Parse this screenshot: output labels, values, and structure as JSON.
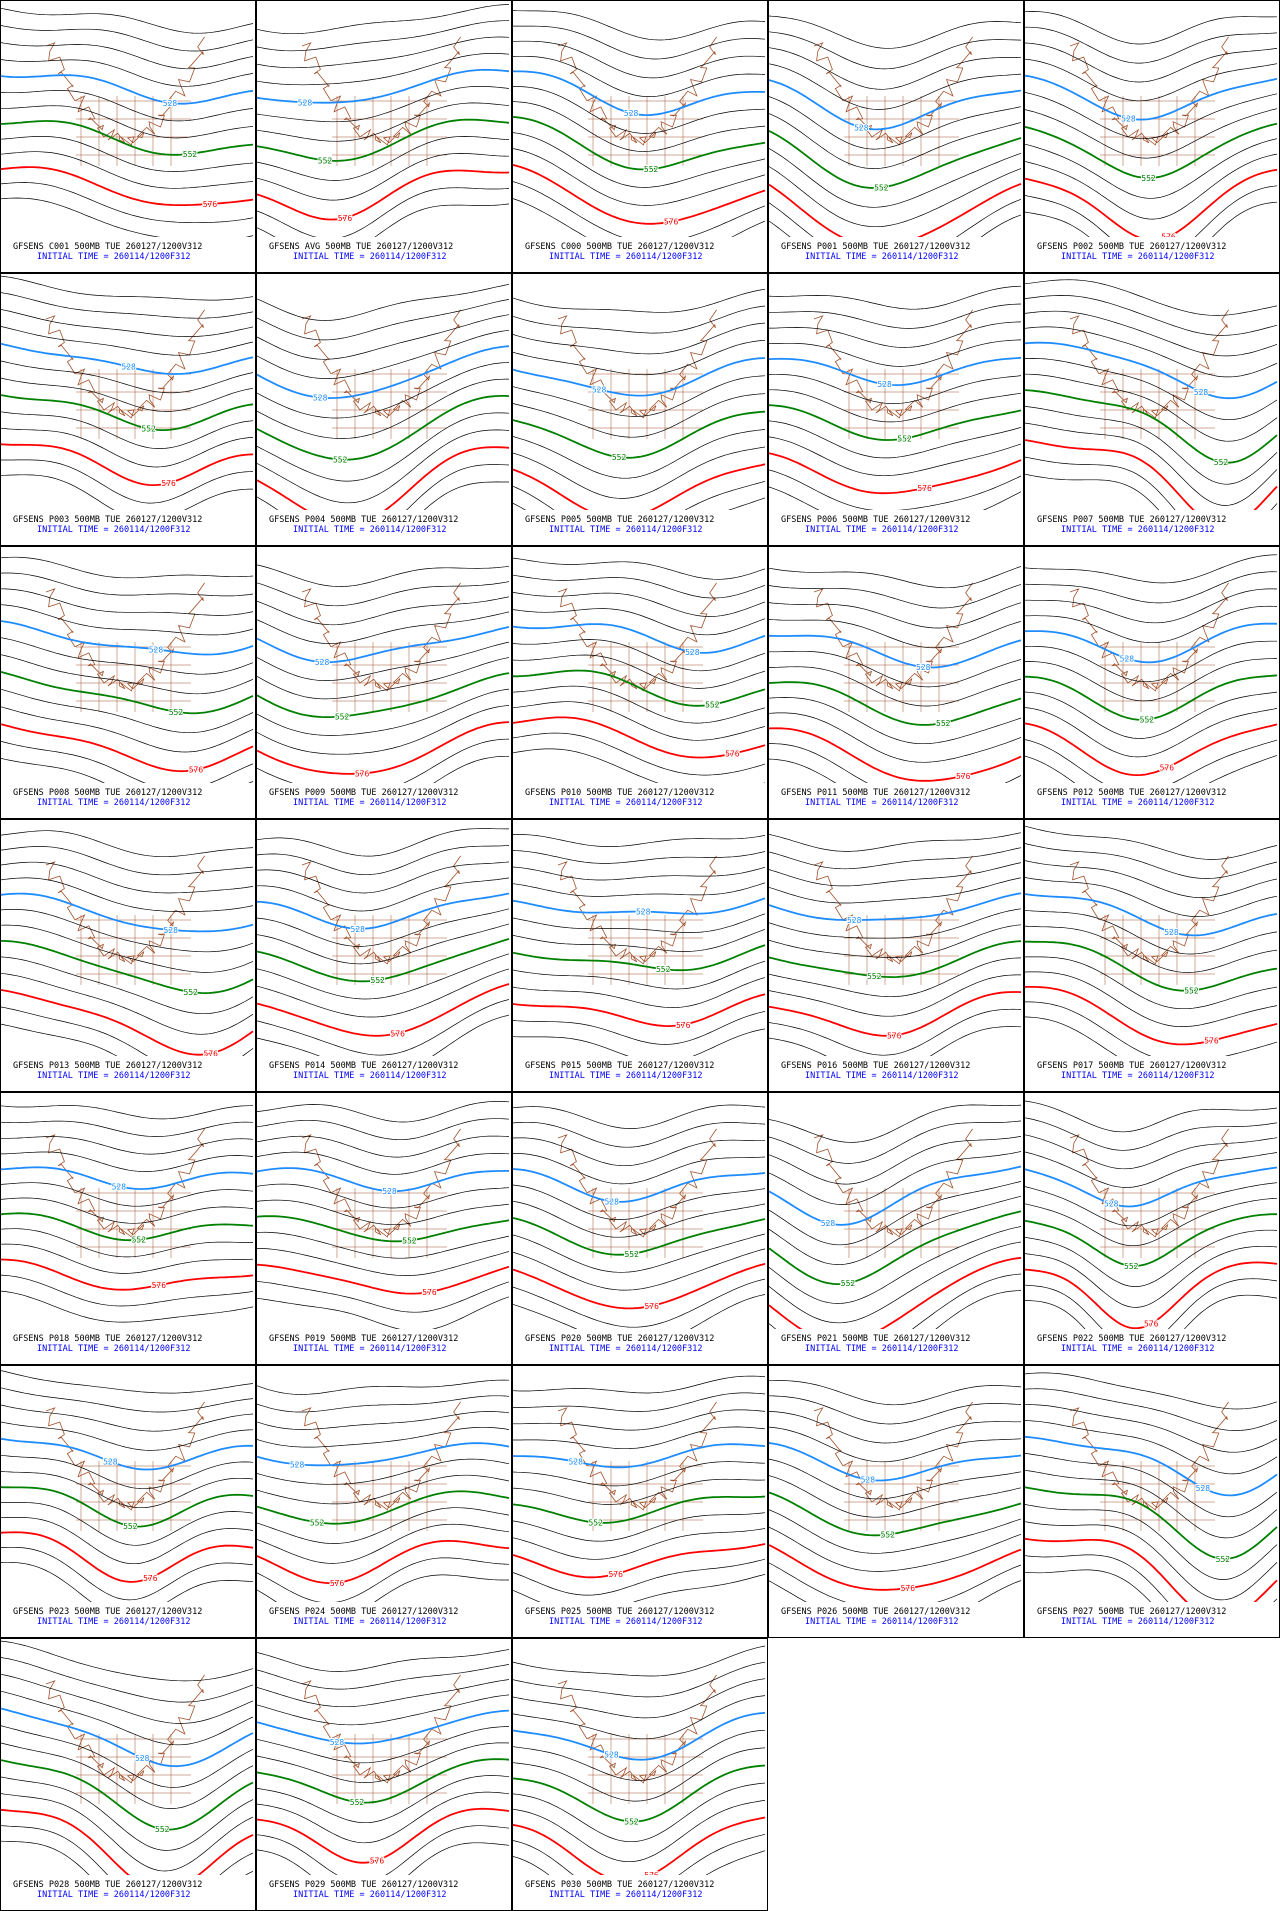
{
  "panels": [
    {
      "title": "GFSENS C001 500MB TUE 260127/1200V312",
      "init": "INITIAL TIME = 260114/1200F312",
      "contours": [
        "528",
        "552",
        "576"
      ]
    },
    {
      "title": "GFSENS AVG 500MB TUE 260127/1200V312",
      "init": "INITIAL TIME = 260114/1200F312",
      "contours": [
        "528",
        "552",
        "576"
      ]
    },
    {
      "title": "GFSENS C000 500MB TUE 260127/1200V312",
      "init": "INITIAL TIME = 260114/1200F312",
      "contours": [
        "528",
        "552",
        "576"
      ]
    },
    {
      "title": "GFSENS P001 500MB TUE 260127/1200V312",
      "init": "INITIAL TIME = 260114/1200F312",
      "contours": [
        "528",
        "552",
        "576"
      ]
    },
    {
      "title": "GFSENS P002 500MB TUE 260127/1200V312",
      "init": "INITIAL TIME = 260114/1200F312",
      "contours": [
        "528",
        "552",
        "576"
      ]
    },
    {
      "title": "GFSENS P003 500MB TUE 260127/1200V312",
      "init": "INITIAL TIME = 260114/1200F312",
      "contours": [
        "528",
        "552",
        "576"
      ]
    },
    {
      "title": "GFSENS P004 500MB TUE 260127/1200V312",
      "init": "INITIAL TIME = 260114/1200F312",
      "contours": [
        "528",
        "552",
        "576"
      ]
    },
    {
      "title": "GFSENS P005 500MB TUE 260127/1200V312",
      "init": "INITIAL TIME = 260114/1200F312",
      "contours": [
        "528",
        "552",
        "576"
      ]
    },
    {
      "title": "GFSENS P006 500MB TUE 260127/1200V312",
      "init": "INITIAL TIME = 260114/1200F312",
      "contours": [
        "528",
        "552",
        "576"
      ]
    },
    {
      "title": "GFSENS P007 500MB TUE 260127/1200V312",
      "init": "INITIAL TIME = 260114/1200F312",
      "contours": [
        "528",
        "552",
        "576"
      ]
    },
    {
      "title": "GFSENS P008 500MB TUE 260127/1200V312",
      "init": "INITIAL TIME = 260114/1200F312",
      "contours": [
        "528",
        "552",
        "576"
      ]
    },
    {
      "title": "GFSENS P009 500MB TUE 260127/1200V312",
      "init": "INITIAL TIME = 260114/1200F312",
      "contours": [
        "528",
        "552",
        "576"
      ]
    },
    {
      "title": "GFSENS P010 500MB TUE 260127/1200V312",
      "init": "INITIAL TIME = 260114/1200F312",
      "contours": [
        "528",
        "552",
        "576"
      ]
    },
    {
      "title": "GFSENS P011 500MB TUE 260127/1200V312",
      "init": "INITIAL TIME = 260114/1200F312",
      "contours": [
        "528",
        "552",
        "576"
      ]
    },
    {
      "title": "GFSENS P012 500MB TUE 260127/1200V312",
      "init": "INITIAL TIME = 260114/1200F312",
      "contours": [
        "528",
        "552",
        "576"
      ]
    },
    {
      "title": "GFSENS P013 500MB TUE 260127/1200V312",
      "init": "INITIAL TIME = 260114/1200F312",
      "contours": [
        "528",
        "552",
        "576"
      ]
    },
    {
      "title": "GFSENS P014 500MB TUE 260127/1200V312",
      "init": "INITIAL TIME = 260114/1200F312",
      "contours": [
        "528",
        "552",
        "576"
      ]
    },
    {
      "title": "GFSENS P015 500MB TUE 260127/1200V312",
      "init": "INITIAL TIME = 260114/1200F312",
      "contours": [
        "528",
        "552",
        "576"
      ]
    },
    {
      "title": "GFSENS P016 500MB TUE 260127/1200V312",
      "init": "INITIAL TIME = 260114/1200F312",
      "contours": [
        "528",
        "552",
        "576"
      ]
    },
    {
      "title": "GFSENS P017 500MB TUE 260127/1200V312",
      "init": "INITIAL TIME = 260114/1200F312",
      "contours": [
        "528",
        "552",
        "576"
      ]
    },
    {
      "title": "GFSENS P018 500MB TUE 260127/1200V312",
      "init": "INITIAL TIME = 260114/1200F312",
      "contours": [
        "528",
        "552",
        "576"
      ]
    },
    {
      "title": "GFSENS P019 500MB TUE 260127/1200V312",
      "init": "INITIAL TIME = 260114/1200F312",
      "contours": [
        "528",
        "552",
        "576"
      ]
    },
    {
      "title": "GFSENS P020 500MB TUE 260127/1200V312",
      "init": "INITIAL TIME = 260114/1200F312",
      "contours": [
        "528",
        "552",
        "576"
      ]
    },
    {
      "title": "GFSENS P021 500MB TUE 260127/1200V312",
      "init": "INITIAL TIME = 260114/1200F312",
      "contours": [
        "528",
        "552",
        "576"
      ]
    },
    {
      "title": "GFSENS P022 500MB TUE 260127/1200V312",
      "init": "INITIAL TIME = 260114/1200F312",
      "contours": [
        "528",
        "552",
        "576"
      ]
    },
    {
      "title": "GFSENS P023 500MB TUE 260127/1200V312",
      "init": "INITIAL TIME = 260114/1200F312",
      "contours": [
        "528",
        "552",
        "576"
      ]
    },
    {
      "title": "GFSENS P024 500MB TUE 260127/1200V312",
      "init": "INITIAL TIME = 260114/1200F312",
      "contours": [
        "528",
        "552",
        "576"
      ]
    },
    {
      "title": "GFSENS P025 500MB TUE 260127/1200V312",
      "init": "INITIAL TIME = 260114/1200F312",
      "contours": [
        "528",
        "552",
        "576"
      ]
    },
    {
      "title": "GFSENS P026 500MB TUE 260127/1200V312",
      "init": "INITIAL TIME = 260114/1200F312",
      "contours": [
        "528",
        "552",
        "576"
      ]
    },
    {
      "title": "GFSENS P027 500MB TUE 260127/1200V312",
      "init": "INITIAL TIME = 260114/1200F312",
      "contours": [
        "528",
        "552",
        "576"
      ]
    },
    {
      "title": "GFSENS P028 500MB TUE 260127/1200V312",
      "init": "INITIAL TIME = 260114/1200F312",
      "contours": [
        "528",
        "552",
        "576"
      ]
    },
    {
      "title": "GFSENS P029 500MB TUE 260127/1200V312",
      "init": "INITIAL TIME = 260114/1200F312",
      "contours": [
        "528",
        "552",
        "576"
      ]
    },
    {
      "title": "GFSENS P030 500MB TUE 260127/1200V312",
      "init": "INITIAL TIME = 260114/1200F312",
      "contours": [
        "528",
        "552",
        "576"
      ]
    }
  ]
}
